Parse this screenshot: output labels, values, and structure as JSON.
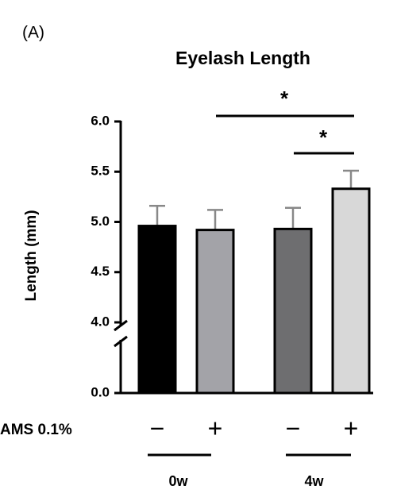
{
  "chart_data": {
    "type": "bar",
    "panel_label": "(A)",
    "title": "Eyelash Length",
    "y_label": "Length (mm)",
    "x_label": "AMS 0.1%",
    "categories": [
      "−",
      "+",
      "−",
      "+"
    ],
    "groups": [
      "0w",
      "4w"
    ],
    "values": [
      4.96,
      4.92,
      4.93,
      5.33
    ],
    "errors": [
      0.2,
      0.2,
      0.21,
      0.18
    ],
    "colors": [
      "#000000",
      "#a3a3a8",
      "#6e6e70",
      "#d8d8d8"
    ],
    "ylim": [
      0,
      6
    ],
    "axis_break": [
      0,
      4
    ],
    "yticks": [
      {
        "value": 0,
        "label": "0.0"
      },
      {
        "value": 4,
        "label": "4.0"
      },
      {
        "value": 4.5,
        "label": "4.5"
      },
      {
        "value": 5,
        "label": "5.0"
      },
      {
        "value": 5.5,
        "label": "5.5"
      },
      {
        "value": 6,
        "label": "6.0"
      }
    ],
    "annotations": [
      "*",
      "*"
    ]
  }
}
